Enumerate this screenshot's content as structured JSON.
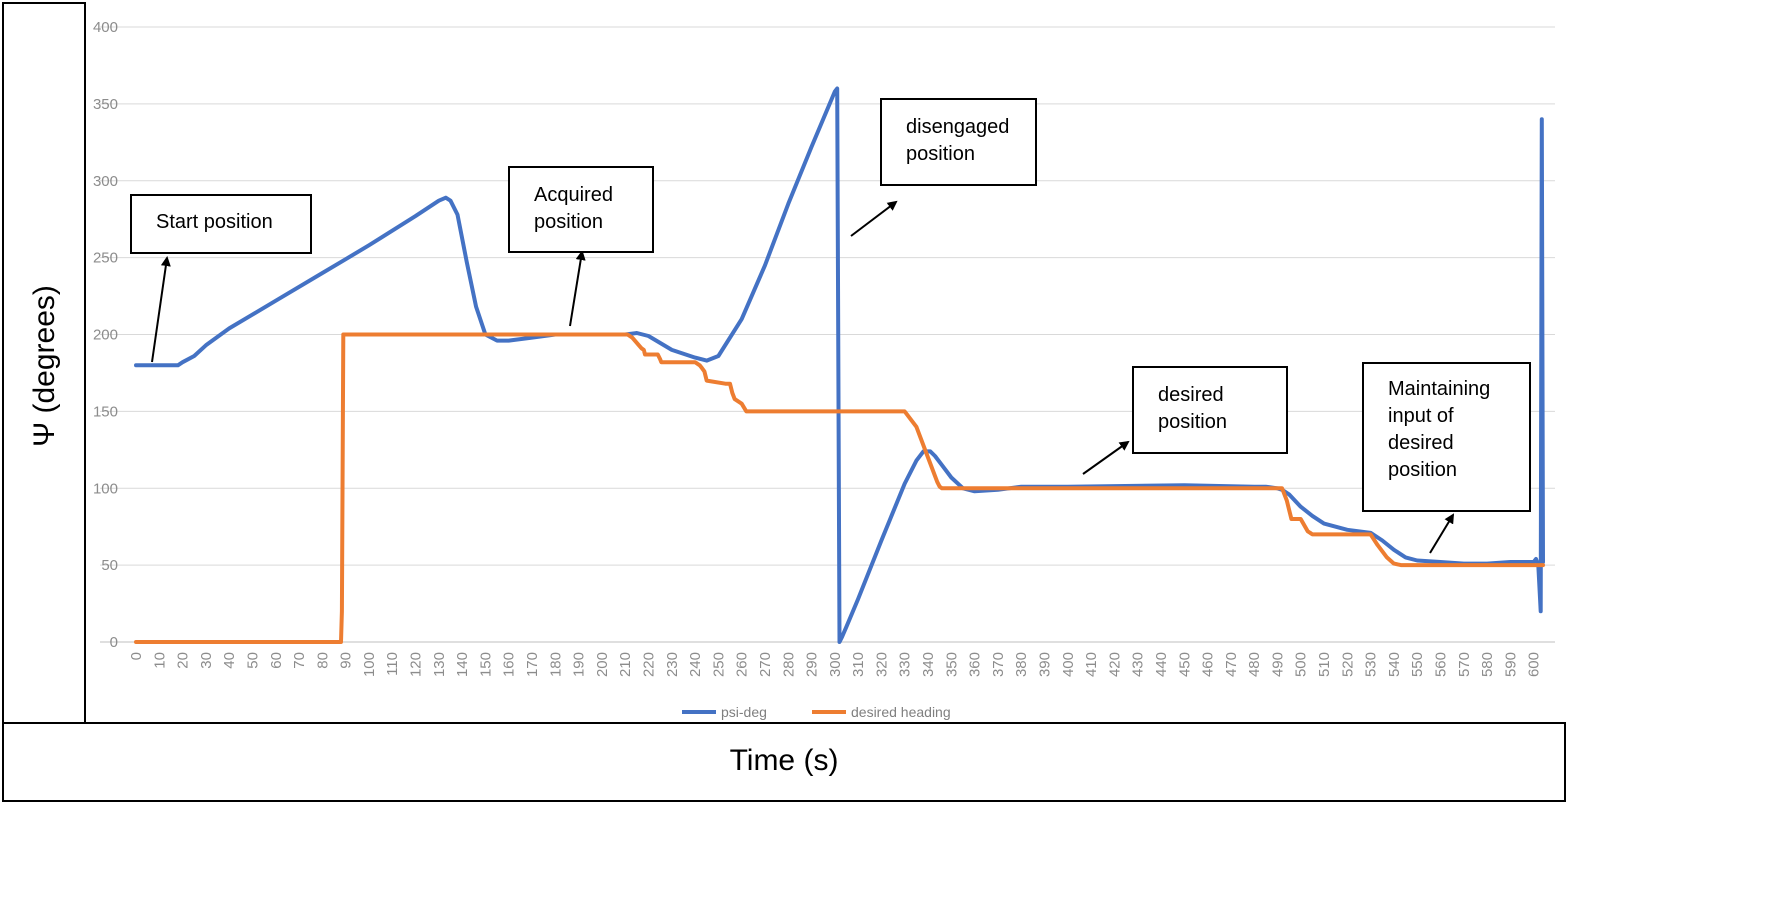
{
  "chart_data": {
    "type": "line",
    "ylabel": "Ψ (degrees)",
    "xlabel": "Time (s)",
    "ylim": [
      0,
      400
    ],
    "xlim": [
      0,
      604
    ],
    "yticks": [
      0,
      50,
      100,
      150,
      200,
      250,
      300,
      350,
      400
    ],
    "xticks": [
      0,
      10,
      20,
      30,
      40,
      50,
      60,
      70,
      80,
      90,
      100,
      110,
      120,
      130,
      140,
      150,
      160,
      170,
      180,
      190,
      200,
      210,
      220,
      230,
      240,
      250,
      260,
      270,
      280,
      290,
      300,
      310,
      320,
      330,
      340,
      350,
      360,
      370,
      380,
      390,
      400,
      410,
      420,
      430,
      440,
      450,
      460,
      470,
      480,
      490,
      500,
      510,
      520,
      530,
      540,
      550,
      560,
      570,
      580,
      590,
      600
    ],
    "grid": "horizontal",
    "legend_position": "bottom",
    "series": [
      {
        "name": "psi-deg",
        "color": "#4472C4",
        "x": [
          0,
          15,
          18,
          20,
          25,
          30,
          40,
          60,
          80,
          90,
          100,
          120,
          130,
          133,
          135,
          138,
          142,
          146,
          150,
          155,
          160,
          170,
          180,
          200,
          205,
          210,
          215,
          220,
          230,
          240,
          245,
          250,
          260,
          270,
          280,
          290,
          300,
          301,
          302,
          303,
          305,
          310,
          320,
          330,
          335,
          338,
          341,
          343,
          346,
          350,
          355,
          360,
          370,
          380,
          400,
          450,
          480,
          485,
          490,
          492,
          495,
          500,
          505,
          510,
          520,
          530,
          535,
          540,
          545,
          550,
          560,
          570,
          580,
          590,
          598,
          600,
          601,
          602,
          603,
          603.5,
          604
        ],
        "y": [
          180,
          180,
          180,
          182,
          186,
          193,
          204,
          222,
          240,
          249,
          258,
          277,
          287,
          289,
          287,
          278,
          247,
          218,
          200,
          196,
          196,
          198,
          200,
          200,
          200,
          200,
          201,
          199,
          190,
          185,
          183,
          186,
          210,
          245,
          285,
          322,
          358,
          360,
          0,
          3,
          10,
          28,
          66,
          103,
          118,
          124,
          124,
          121,
          115,
          107,
          100,
          98,
          99,
          101,
          101,
          102,
          101,
          101,
          100,
          99,
          96,
          88,
          82,
          77,
          73,
          71,
          66,
          60,
          55,
          53,
          52,
          51,
          51,
          52,
          52,
          52,
          54,
          50,
          20,
          340,
          52
        ]
      },
      {
        "name": "desired heading",
        "color": "#ED7D31",
        "x": [
          0,
          88,
          88.4,
          89,
          211,
          213,
          217,
          218,
          218.5,
          224,
          225,
          225.5,
          240,
          242,
          243,
          244,
          245,
          253,
          255,
          256,
          257,
          260,
          262,
          330,
          335,
          340,
          344,
          345,
          346,
          492,
          494,
          495,
          496,
          500,
          503,
          504,
          505,
          530,
          533,
          535,
          537,
          540,
          543,
          545,
          604
        ],
        "y": [
          0,
          0,
          20,
          200,
          200,
          198,
          191,
          190,
          187,
          187,
          184,
          182,
          182,
          180,
          178,
          176,
          170,
          168,
          168,
          162,
          158,
          155,
          150,
          150,
          140,
          120,
          104,
          101,
          100,
          100,
          92,
          86,
          80,
          80,
          72,
          71,
          70,
          70,
          63,
          59,
          55,
          51,
          50,
          50,
          50
        ]
      }
    ],
    "annotations": [
      {
        "id": "start",
        "text": "Start position"
      },
      {
        "id": "acquired",
        "text": "Acquired position"
      },
      {
        "id": "disengaged",
        "text": "disengaged position"
      },
      {
        "id": "desired",
        "text": "desired position"
      },
      {
        "id": "maintaining",
        "text": "Maintaining input of desired position"
      }
    ]
  }
}
